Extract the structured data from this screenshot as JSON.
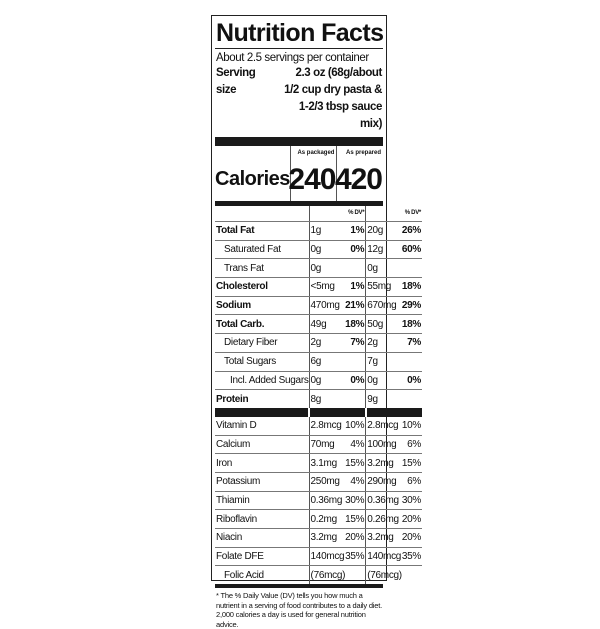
{
  "title": "Nutrition Facts",
  "servings": "About 2.5 servings per container",
  "serving_size": {
    "label": "Serving size",
    "lines": [
      "2.3 oz (68g/about",
      "1/2 cup dry pasta &",
      "1-2/3 tbsp sauce mix)"
    ]
  },
  "columns": [
    "As packaged",
    "As prepared"
  ],
  "calories": {
    "label": "Calories",
    "packaged": "240",
    "prepared": "420"
  },
  "dv_header": "% DV*",
  "nutrients": [
    {
      "name": "Total Fat",
      "a": "1g",
      "ap": "1%",
      "b": "20g",
      "bp": "26%"
    },
    {
      "name": "Saturated Fat",
      "a": "0g",
      "ap": "0%",
      "b": "12g",
      "bp": "60%"
    },
    {
      "name": "Trans Fat",
      "a": "0g",
      "ap": "",
      "b": "0g",
      "bp": ""
    },
    {
      "name": "Cholesterol",
      "a": "<5mg",
      "ap": "1%",
      "b": "55mg",
      "bp": "18%"
    },
    {
      "name": "Sodium",
      "a": "470mg",
      "ap": "21%",
      "b": "670mg",
      "bp": "29%"
    },
    {
      "name": "Total Carb.",
      "a": "49g",
      "ap": "18%",
      "b": "50g",
      "bp": "18%"
    },
    {
      "name": "Dietary Fiber",
      "a": "2g",
      "ap": "7%",
      "b": "2g",
      "bp": "7%"
    },
    {
      "name": "Total Sugars",
      "a": "6g",
      "ap": "",
      "b": "7g",
      "bp": ""
    },
    {
      "name": "Incl. Added Sugars",
      "a": "0g",
      "ap": "0%",
      "b": "0g",
      "bp": "0%"
    },
    {
      "name": "Protein",
      "a": "8g",
      "ap": "",
      "b": "9g",
      "bp": ""
    }
  ],
  "vitamins": [
    {
      "name": "Vitamin D",
      "a": "2.8mcg",
      "ap": "10%",
      "b": "2.8mcg",
      "bp": "10%"
    },
    {
      "name": "Calcium",
      "a": "70mg",
      "ap": "4%",
      "b": "100mg",
      "bp": "6%"
    },
    {
      "name": "Iron",
      "a": "3.1mg",
      "ap": "15%",
      "b": "3.2mg",
      "bp": "15%"
    },
    {
      "name": "Potassium",
      "a": "250mg",
      "ap": "4%",
      "b": "290mg",
      "bp": "6%"
    },
    {
      "name": "Thiamin",
      "a": "0.36mg",
      "ap": "30%",
      "b": "0.36mg",
      "bp": "30%"
    },
    {
      "name": "Riboflavin",
      "a": "0.2mg",
      "ap": "15%",
      "b": "0.26mg",
      "bp": "20%"
    },
    {
      "name": "Niacin",
      "a": "3.2mg",
      "ap": "20%",
      "b": "3.2mg",
      "bp": "20%"
    },
    {
      "name": "Folate DFE",
      "a": "140mcg",
      "ap": "35%",
      "b": "140mcg",
      "bp": "35%"
    },
    {
      "name": "Folic Acid",
      "a": "(76mcg)",
      "ap": "",
      "b": "(76mcg)",
      "bp": ""
    }
  ],
  "footnote": "* The % Daily Value (DV) tells you how much a nutrient in a serving of food contributes to a daily diet. 2,000 calories a day is used for general nutrition advice."
}
